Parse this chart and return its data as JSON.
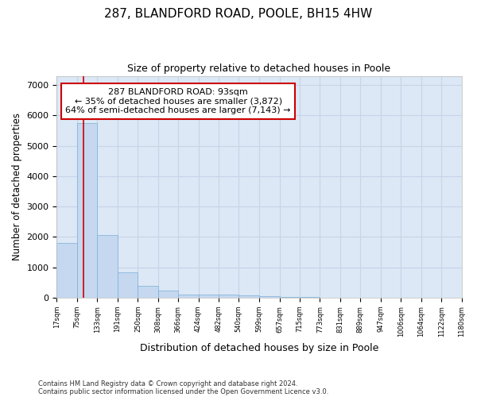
{
  "title": "287, BLANDFORD ROAD, POOLE, BH15 4HW",
  "subtitle": "Size of property relative to detached houses in Poole",
  "xlabel": "Distribution of detached houses by size in Poole",
  "ylabel": "Number of detached properties",
  "footnote1": "Contains HM Land Registry data © Crown copyright and database right 2024.",
  "footnote2": "Contains public sector information licensed under the Open Government Licence v3.0.",
  "annotation_line1": "287 BLANDFORD ROAD: 93sqm",
  "annotation_line2": "← 35% of detached houses are smaller (3,872)",
  "annotation_line3": "64% of semi-detached houses are larger (7,143) →",
  "bar_color": "#c5d8f0",
  "bar_edge_color": "#7aaed6",
  "red_line_color": "#cc0000",
  "annotation_box_color": "#cc0000",
  "grid_color": "#c8d4e8",
  "background_color": "#dce8f5",
  "bin_edges": [
    17,
    75,
    133,
    191,
    250,
    308,
    366,
    424,
    482,
    540,
    599,
    657,
    715,
    773,
    831,
    889,
    947,
    1006,
    1064,
    1122,
    1180
  ],
  "bar_heights": [
    1800,
    5750,
    2050,
    830,
    380,
    235,
    115,
    100,
    95,
    75,
    50,
    30,
    20,
    0,
    0,
    0,
    0,
    0,
    0,
    0
  ],
  "property_size": 93,
  "ylim": [
    0,
    7300
  ],
  "yticks": [
    0,
    1000,
    2000,
    3000,
    4000,
    5000,
    6000,
    7000
  ]
}
